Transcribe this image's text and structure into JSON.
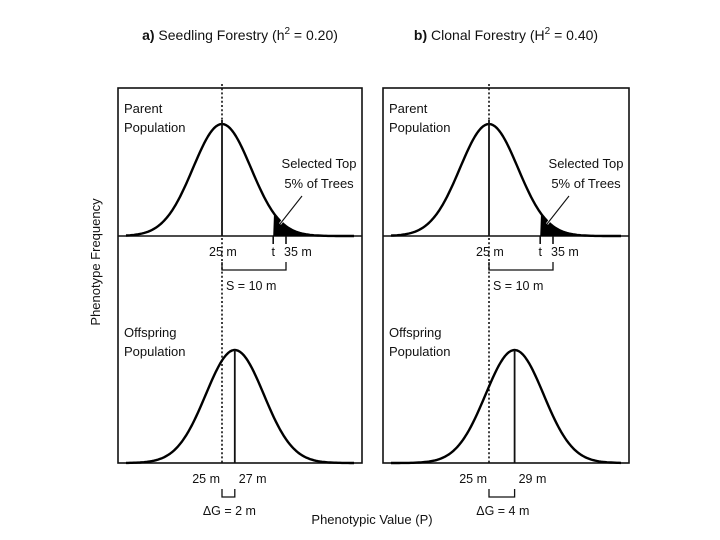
{
  "panels": [
    {
      "letter": "a)",
      "title_main": "Seedling Forestry (h",
      "title_sup": "2",
      "title_tail": " = 0.20)",
      "parent_label": [
        "Parent",
        "Population"
      ],
      "offspring_label": [
        "Offspring",
        "Population"
      ],
      "selected_label": [
        "Selected Top",
        "5% of Trees"
      ],
      "parent_mean_label": "25 m",
      "threshold_label": "t",
      "selected_mean_label": "35 m",
      "s_label": "S = 10 m",
      "offspring_base_label": "25 m",
      "offspring_mean_label": "27 m",
      "gain_label": "ΔG = 2 m",
      "parent_mean": 25,
      "threshold": 33,
      "selected_mean": 35,
      "offspring_mean": 27
    },
    {
      "letter": "b)",
      "title_main": "Clonal Forestry (H",
      "title_sup": "2",
      "title_tail": " = 0.40)",
      "parent_label": [
        "Parent",
        "Population"
      ],
      "offspring_label": [
        "Offspring",
        "Population"
      ],
      "selected_label": [
        "Selected Top",
        "5% of Trees"
      ],
      "parent_mean_label": "25 m",
      "threshold_label": "t",
      "selected_mean_label": "35 m",
      "s_label": "S = 10 m",
      "offspring_base_label": "25 m",
      "offspring_mean_label": "29 m",
      "gain_label": "ΔG = 4 m",
      "parent_mean": 25,
      "threshold": 33,
      "selected_mean": 35,
      "offspring_mean": 29
    }
  ],
  "y_axis_label": "Phenotype Frequency",
  "x_axis_label": "Phenotypic Value (P)"
}
